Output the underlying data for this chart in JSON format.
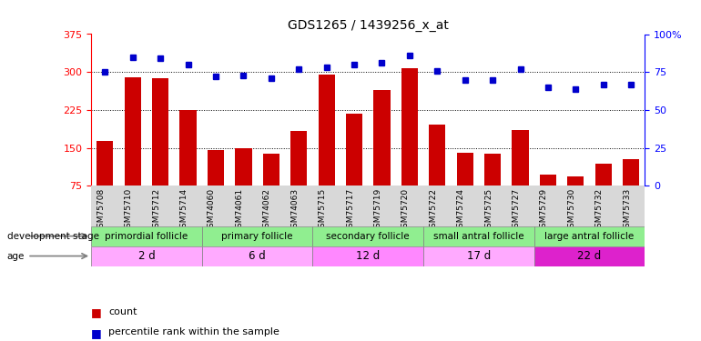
{
  "title": "GDS1265 / 1439256_x_at",
  "samples": [
    "GSM75708",
    "GSM75710",
    "GSM75712",
    "GSM75714",
    "GSM74060",
    "GSM74061",
    "GSM74062",
    "GSM74063",
    "GSM75715",
    "GSM75717",
    "GSM75719",
    "GSM75720",
    "GSM75722",
    "GSM75724",
    "GSM75725",
    "GSM75727",
    "GSM75729",
    "GSM75730",
    "GSM75732",
    "GSM75733"
  ],
  "counts": [
    163,
    290,
    288,
    224,
    145,
    150,
    138,
    183,
    295,
    218,
    265,
    308,
    197,
    141,
    138,
    185,
    97,
    94,
    118,
    128
  ],
  "percentiles": [
    75,
    85,
    84,
    80,
    72,
    73,
    71,
    77,
    78,
    80,
    81,
    86,
    76,
    70,
    70,
    77,
    65,
    64,
    67,
    67
  ],
  "groups": [
    {
      "label": "primordial follicle",
      "age": "2 d",
      "start": 0,
      "end": 4
    },
    {
      "label": "primary follicle",
      "age": "6 d",
      "start": 4,
      "end": 8
    },
    {
      "label": "secondary follicle",
      "age": "12 d",
      "start": 8,
      "end": 12
    },
    {
      "label": "small antral follicle",
      "age": "17 d",
      "start": 12,
      "end": 16
    },
    {
      "label": "large antral follicle",
      "age": "22 d",
      "start": 16,
      "end": 20
    }
  ],
  "group_colors_stage": [
    "#90ee90",
    "#90ee90",
    "#90ee90",
    "#90ee90",
    "#90ee90"
  ],
  "group_colors_age": [
    "#ffaaff",
    "#ffaaff",
    "#ff88ff",
    "#ffaaff",
    "#dd22cc"
  ],
  "ylim_left": [
    75,
    375
  ],
  "ylim_right": [
    0,
    100
  ],
  "bar_color": "#cc0000",
  "dot_color": "#0000cc",
  "bg_color": "#ffffff",
  "label_count": "count",
  "label_percentile": "percentile rank within the sample",
  "yticks_left": [
    75,
    150,
    225,
    300,
    375
  ],
  "yticks_right": [
    0,
    25,
    50,
    75,
    100
  ]
}
